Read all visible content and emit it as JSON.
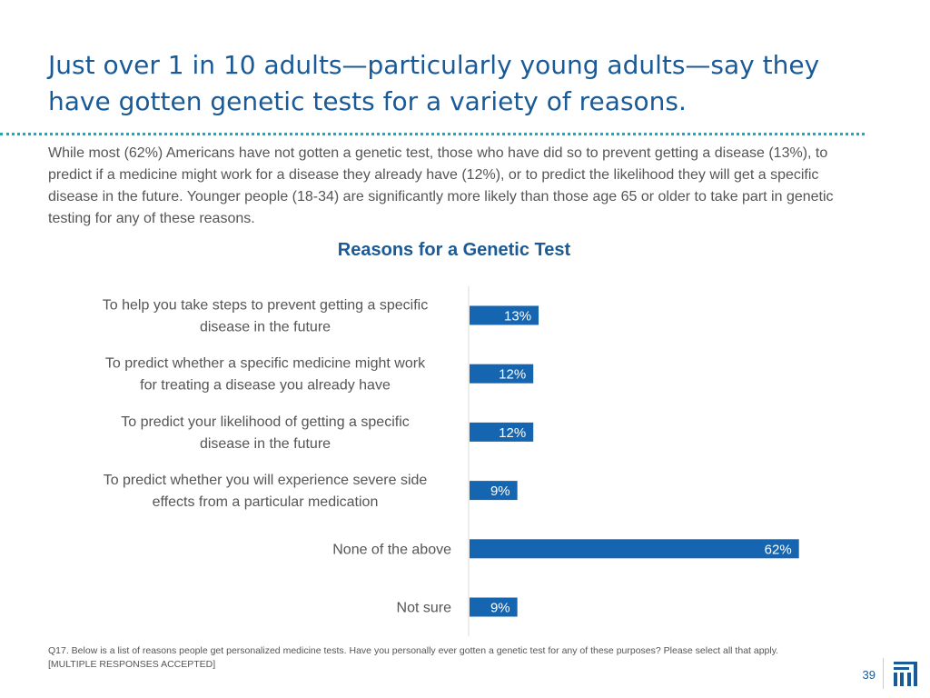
{
  "slide": {
    "title": "Just over 1 in 10 adults—particularly young adults—say they have gotten genetic tests for a variety of reasons.",
    "summary": "While most (62%) Americans have not gotten a genetic test, those who have did so to prevent getting a disease (13%), to predict if a medicine might work for a disease they already have (12%), or to predict the likelihood they will get a specific disease in the future. Younger people (18-34) are significantly more likely than those age 65 or older to take part in genetic testing for any of these reasons.",
    "footnote": "Q17. Below is a list of reasons people get personalized medicine tests. Have you personally ever gotten a genetic test for any of these purposes? Please select all that apply. [MULTIPLE RESPONSES ACCEPTED]",
    "page_number": "39",
    "logo_icon": "logo-icon"
  },
  "colors": {
    "title": "#1a5a96",
    "bar": "#1565b0",
    "divider": "#2aa3b8",
    "text": "#555555"
  },
  "chart_data": {
    "type": "bar",
    "orientation": "horizontal",
    "title": "Reasons for a Genetic Test",
    "categories": [
      [
        "To help you take steps to prevent getting a specific",
        "disease in the future"
      ],
      [
        "To predict whether a specific medicine might work",
        "for treating a disease you already have"
      ],
      [
        "To predict your likelihood of getting a specific",
        "disease in the future"
      ],
      [
        "To predict whether you will experience severe side",
        "effects from a particular medication"
      ],
      [
        "None of the above"
      ],
      [
        "Not sure"
      ]
    ],
    "values": [
      13,
      12,
      12,
      9,
      62,
      9
    ],
    "value_labels": [
      "13%",
      "12%",
      "12%",
      "9%",
      "62%",
      "9%"
    ],
    "xlim": [
      0,
      100
    ],
    "grid": false,
    "legend": "none"
  }
}
